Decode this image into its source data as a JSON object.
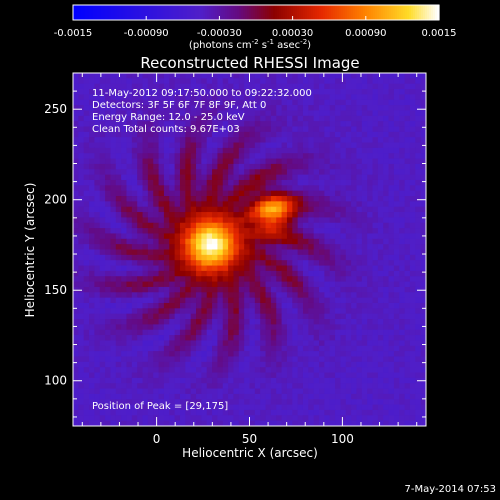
{
  "chart_data": {
    "type": "heatmap",
    "title": "Reconstructed RHESSI Image",
    "xlabel": "Heliocentric X (arcsec)",
    "ylabel": "Heliocentric Y (arcsec)",
    "xlim": [
      -45,
      145
    ],
    "ylim": [
      75,
      270
    ],
    "x_ticks": [
      0,
      50,
      100
    ],
    "y_ticks": [
      100,
      150,
      200,
      250
    ],
    "x_tick_labels": [
      "0",
      "50",
      "100"
    ],
    "y_tick_labels": [
      "100",
      "150",
      "200",
      "250"
    ],
    "colorbar": {
      "range": [
        -0.0015,
        0.0015
      ],
      "unit_label_prefix": "(photons cm",
      "unit_label_sup1": "-2",
      "unit_label_mid1": " s",
      "unit_label_sup2": "-1",
      "unit_label_mid2": " asec",
      "unit_label_sup3": "-2",
      "unit_label_suffix": ")",
      "ticks": [
        -0.0015,
        -0.0009,
        -0.0003,
        0.0003,
        0.0009,
        0.0015
      ],
      "tick_labels": [
        "-0.0015",
        "-0.00090",
        "-0.00030",
        "0.00030",
        "0.00090",
        "0.0015"
      ]
    },
    "annotations": [
      "11-May-2012 09:17:50.000 to 09:22:32.000",
      "Detectors: 3F 5F 6F 7F 8F 9F, Att 0",
      "Energy Range: 12.0 - 25.0 keV",
      "Clean     Total counts: 9.67E+03"
    ],
    "peak_label": "Position of Peak = [29,175]",
    "footer": "7-May-2014 07:53",
    "sources": [
      {
        "x": 29,
        "y": 175,
        "sigma": 10,
        "amplitude": 0.00145
      },
      {
        "x": 63,
        "y": 193,
        "sigma": 8,
        "amplitude": 0.00105
      },
      {
        "x": 32,
        "y": 178,
        "sigma": 38,
        "amplitude": 0.00052
      }
    ],
    "background_level": -0.00045,
    "ring_modulation": 0.00022
  }
}
